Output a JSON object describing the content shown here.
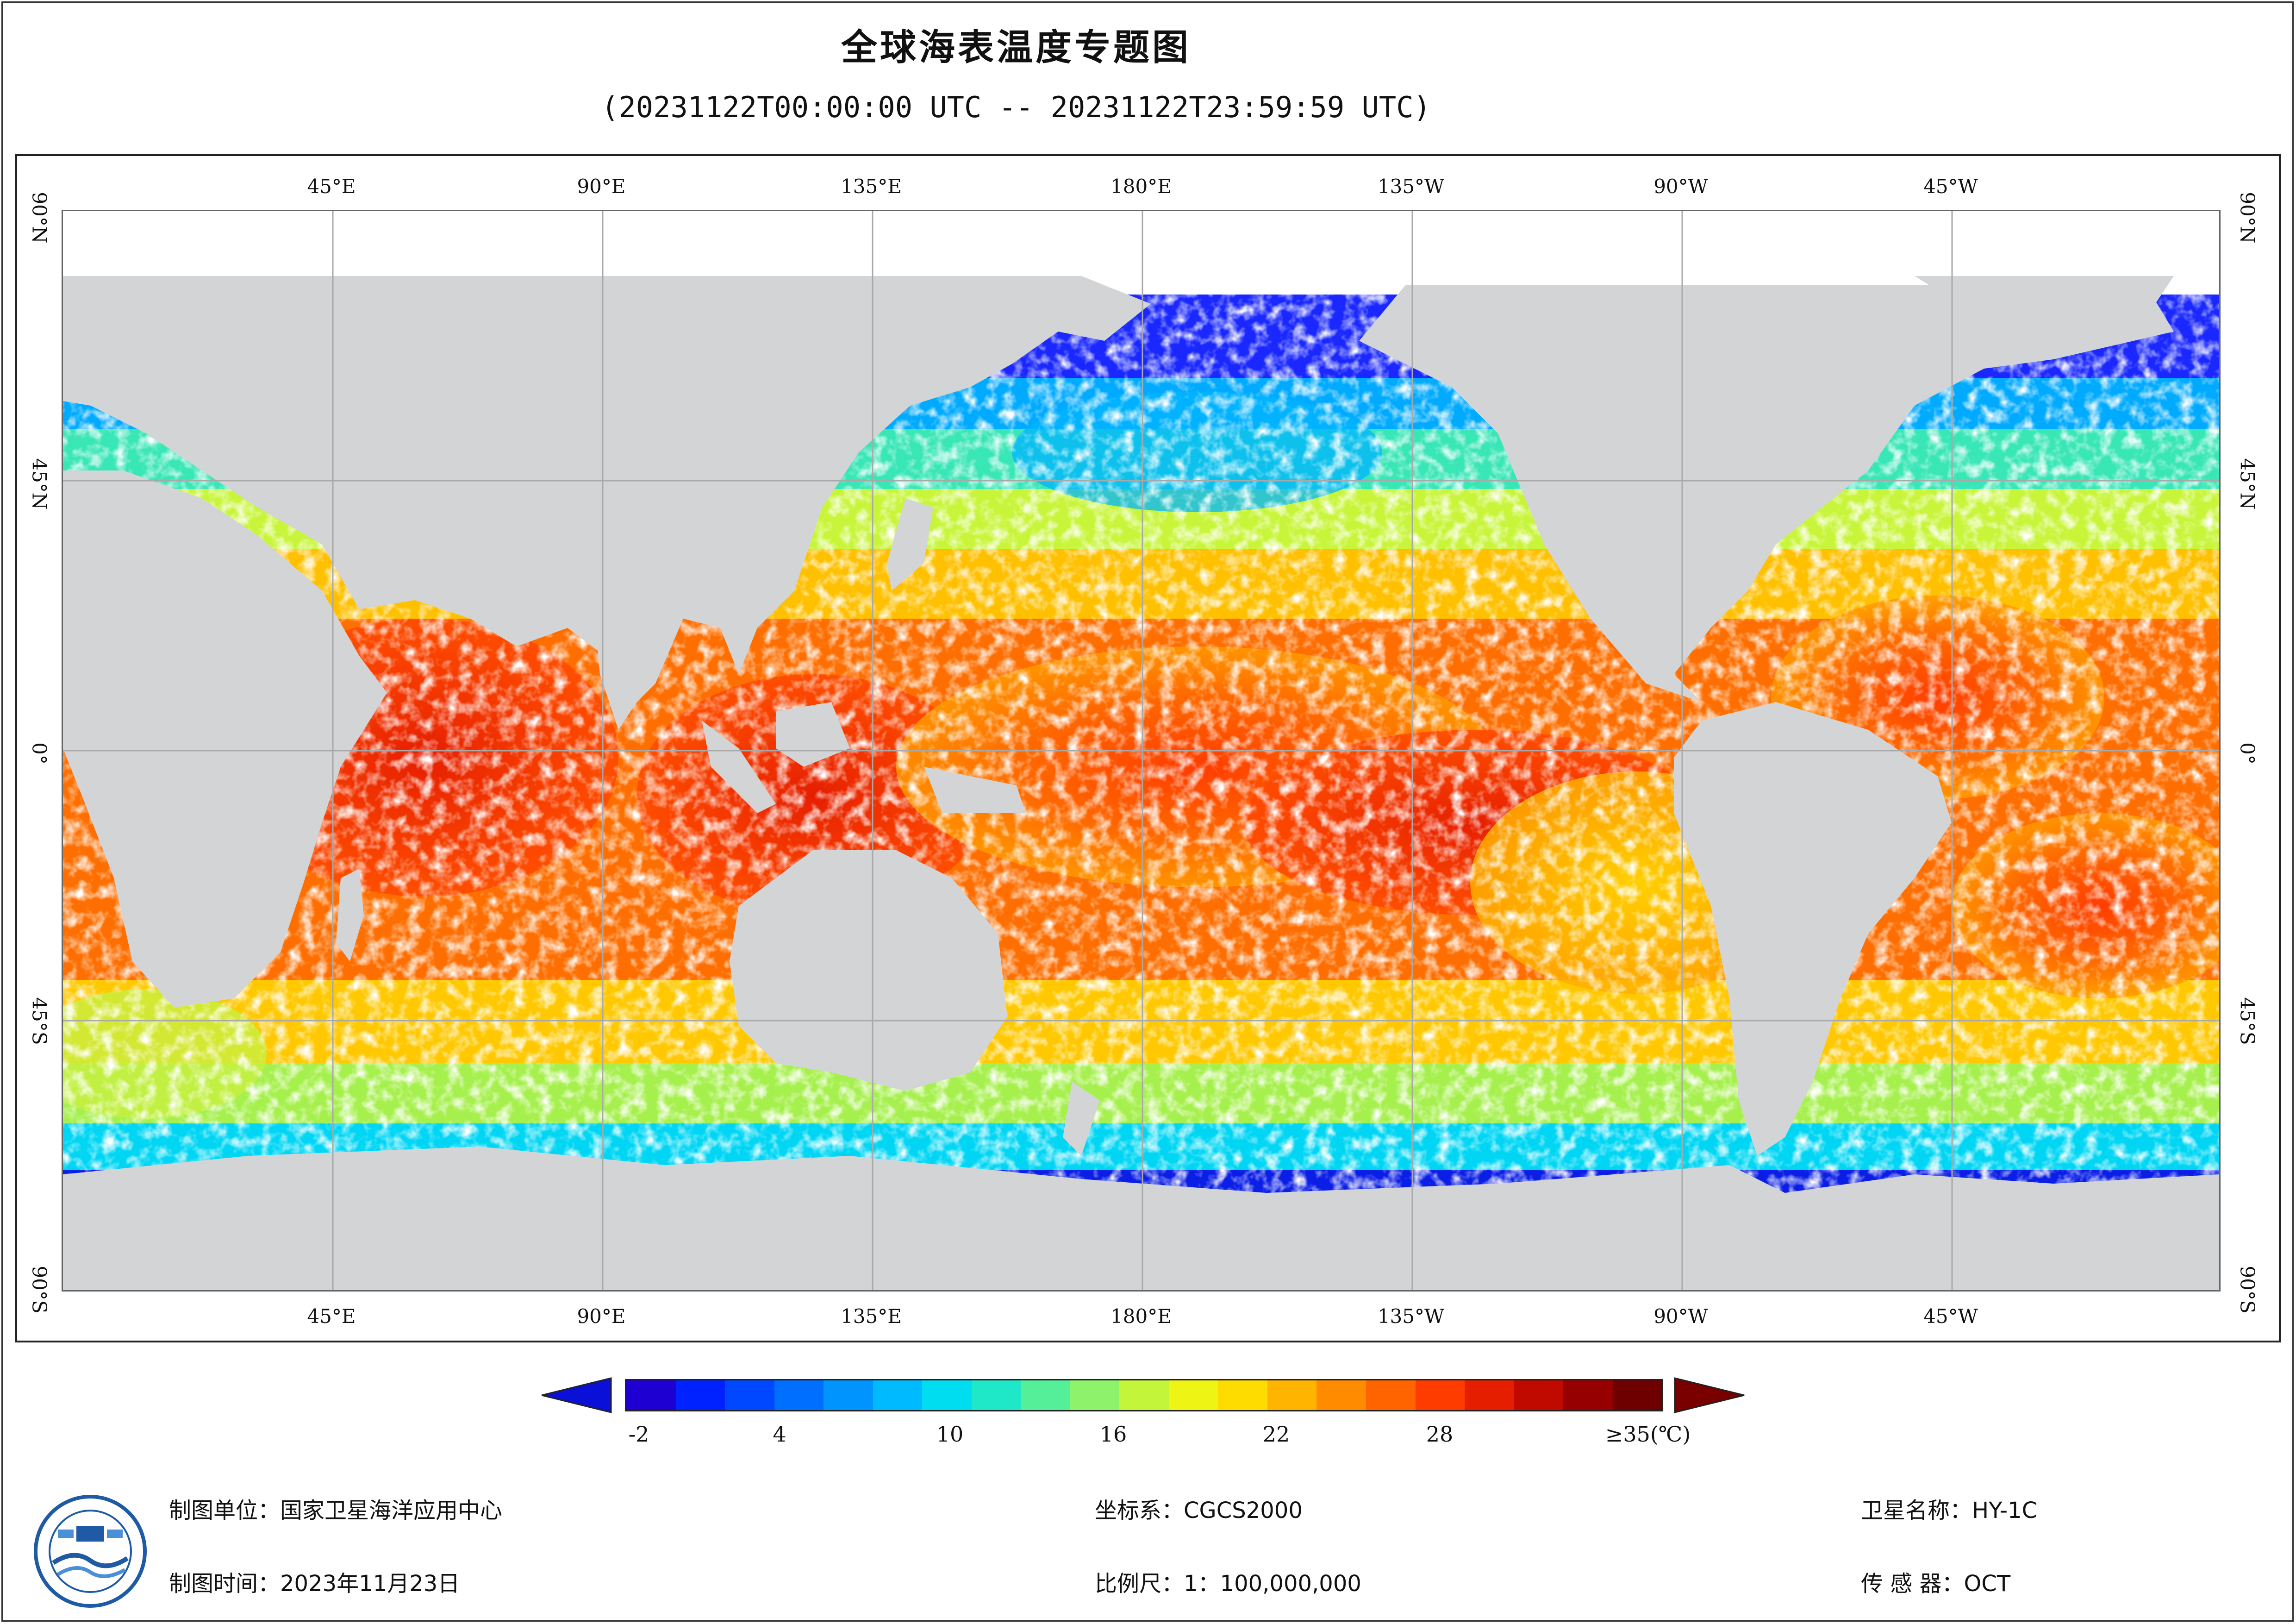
{
  "title": "全球海表温度专题图",
  "subtitle": "(20231122T00:00:00 UTC -- 20231122T23:59:59 UTC)",
  "map": {
    "projection_extent_lon": [
      0,
      360
    ],
    "projection_extent_lat": [
      -90,
      90
    ],
    "land_color": "#d3d4d6",
    "nodata_color": "#ffffff",
    "gridline_color": "#a9a9a9",
    "lon_labels": [
      "45°E",
      "90°E",
      "135°E",
      "180°E",
      "135°W",
      "90°W",
      "45°W"
    ],
    "lat_labels": [
      "90°N",
      "45°N",
      "0°",
      "45°S",
      "90°S"
    ]
  },
  "colorbar": {
    "ticks": [
      "-2",
      "4",
      "10",
      "16",
      "22",
      "28",
      "≥35(℃)"
    ],
    "min_value": -2,
    "max_value": 35,
    "tick_values": [
      -2,
      4,
      10,
      16,
      22,
      28,
      35
    ],
    "under_color": "#0a10d8",
    "over_color": "#7a0000",
    "colors": [
      "#1e00d2",
      "#0022ff",
      "#0048ff",
      "#006eff",
      "#0094ff",
      "#00baff",
      "#00dcf0",
      "#1ee8c8",
      "#55ef9a",
      "#8ef26a",
      "#c3f53a",
      "#eef514",
      "#ffdc00",
      "#ffb400",
      "#ff8c00",
      "#ff6400",
      "#ff3c00",
      "#e61e00",
      "#c00a00",
      "#960000",
      "#6e0000"
    ]
  },
  "footer": {
    "producer": "制图单位：国家卫星海洋应用中心",
    "date": "制图时间：2023年11月23日",
    "crs": "坐标系：CGCS2000",
    "scale": "比例尺：1：100,000,000",
    "satellite": "卫星名称：HY-1C",
    "sensor": "传  感  器：OCT"
  },
  "icons": {
    "logo": "nsoas-logo-icon",
    "under_arrow": "triangle-left-icon",
    "over_arrow": "triangle-right-icon"
  }
}
